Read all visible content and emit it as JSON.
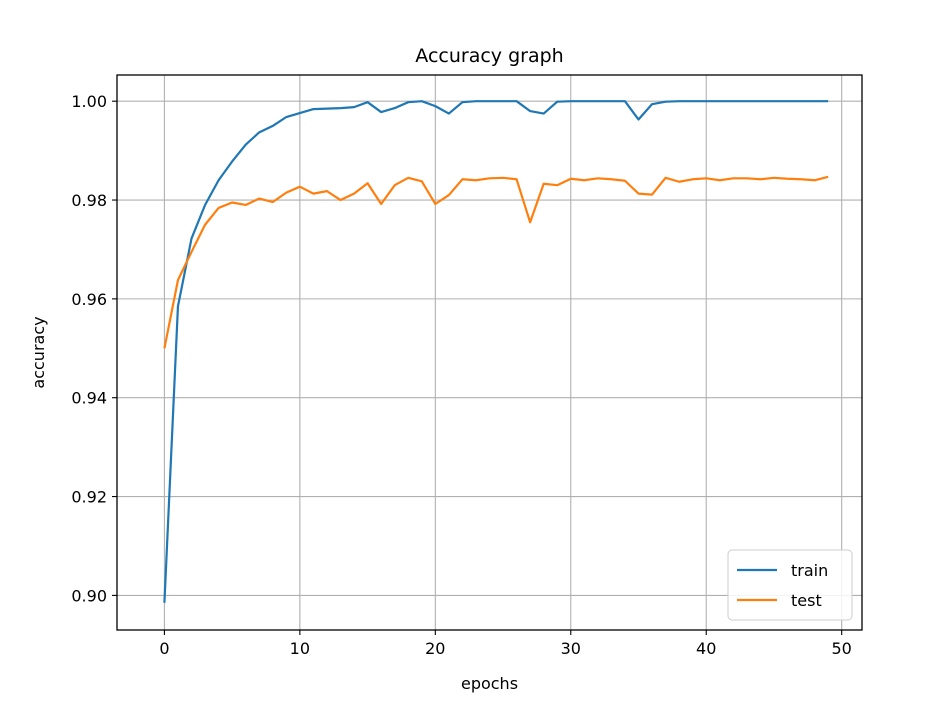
{
  "chart_data": {
    "type": "line",
    "title": "Accuracy graph",
    "xlabel": "epochs",
    "ylabel": "accuracy",
    "xlim": [
      -3.5,
      51.5
    ],
    "ylim": [
      0.893,
      1.0053
    ],
    "xticks": [
      0,
      10,
      20,
      30,
      40,
      50
    ],
    "xtick_labels": [
      "0",
      "10",
      "20",
      "30",
      "40",
      "50"
    ],
    "yticks": [
      0.9,
      0.92,
      0.94,
      0.96,
      0.98,
      1.0
    ],
    "ytick_labels": [
      "0.90",
      "0.92",
      "0.94",
      "0.96",
      "0.98",
      "1.00"
    ],
    "grid": true,
    "legend": "lower right",
    "x": [
      0,
      1,
      2,
      3,
      4,
      5,
      6,
      7,
      8,
      9,
      10,
      11,
      12,
      13,
      14,
      15,
      16,
      17,
      18,
      19,
      20,
      21,
      22,
      23,
      24,
      25,
      26,
      27,
      28,
      29,
      30,
      31,
      32,
      33,
      34,
      35,
      36,
      37,
      38,
      39,
      40,
      41,
      42,
      43,
      44,
      45,
      46,
      47,
      48,
      49
    ],
    "series": [
      {
        "name": "train",
        "color": "#1f77b4",
        "values": [
          0.8985,
          0.9585,
          0.9722,
          0.979,
          0.984,
          0.9878,
          0.9912,
          0.9937,
          0.995,
          0.9968,
          0.9976,
          0.9984,
          0.9985,
          0.9986,
          0.9988,
          0.9998,
          0.9978,
          0.9986,
          0.9998,
          1.0,
          0.999,
          0.9975,
          0.9998,
          1.0,
          1.0,
          1.0,
          1.0,
          0.998,
          0.9975,
          0.9999,
          1.0,
          1.0,
          1.0,
          1.0,
          1.0,
          0.9963,
          0.9994,
          0.9999,
          1.0,
          1.0,
          1.0,
          1.0,
          1.0,
          1.0,
          1.0,
          1.0,
          1.0,
          1.0,
          1.0,
          1.0
        ]
      },
      {
        "name": "test",
        "color": "#ff7f0e",
        "values": [
          0.95,
          0.9638,
          0.9695,
          0.975,
          0.9784,
          0.9795,
          0.979,
          0.9803,
          0.9796,
          0.9815,
          0.9827,
          0.9813,
          0.9818,
          0.98,
          0.9813,
          0.9834,
          0.9792,
          0.983,
          0.9845,
          0.9838,
          0.9792,
          0.981,
          0.9842,
          0.984,
          0.9844,
          0.9845,
          0.9842,
          0.9755,
          0.9833,
          0.983,
          0.9843,
          0.984,
          0.9844,
          0.9842,
          0.9839,
          0.9813,
          0.9811,
          0.9845,
          0.9837,
          0.9842,
          0.9844,
          0.984,
          0.9844,
          0.9844,
          0.9842,
          0.9845,
          0.9843,
          0.9842,
          0.984,
          0.9847
        ]
      }
    ]
  }
}
